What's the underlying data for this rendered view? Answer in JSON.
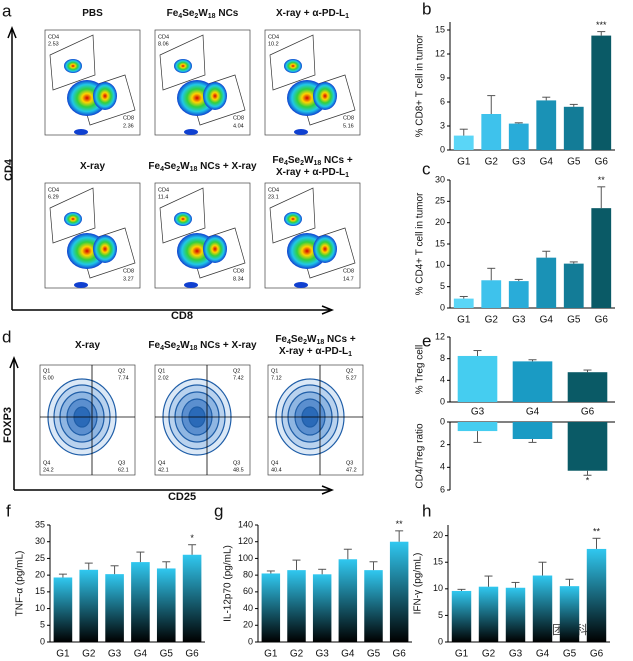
{
  "flow_a": {
    "panel_label": "a",
    "y_axis": "CD4",
    "x_axis": "CD8",
    "plots": [
      {
        "title_lines": [
          "PBS"
        ],
        "cd4_label": "CD4",
        "cd4": "2.53",
        "cd8_label": "CD8",
        "cd8": "2.36"
      },
      {
        "title_lines": [
          "Fe4Se2W18 NCs"
        ],
        "cd4_label": "CD4",
        "cd4": "8.06",
        "cd8_label": "CD8",
        "cd8": "4.04"
      },
      {
        "title_lines": [
          "X-ray + α-PD-L1"
        ],
        "cd4_label": "CD4",
        "cd4": "10.2",
        "cd8_label": "CD8",
        "cd8": "5.16"
      },
      {
        "title_lines": [
          "X-ray"
        ],
        "cd4_label": "CD4",
        "cd4": "6.29",
        "cd8_label": "CD8",
        "cd8": "3.27"
      },
      {
        "title_lines": [
          "Fe4Se2W18 NCs + X-ray"
        ],
        "cd4_label": "CD4",
        "cd4": "11.4",
        "cd8_label": "CD8",
        "cd8": "8.34"
      },
      {
        "title_lines": [
          "Fe4Se2W18 NCs +",
          "X-ray + α-PD-L1"
        ],
        "cd4_label": "CD4",
        "cd4": "23.1",
        "cd8_label": "CD8",
        "cd8": "14.7"
      }
    ]
  },
  "flow_d": {
    "panel_label": "d",
    "y_axis": "FOXP3",
    "x_axis": "CD25",
    "plots": [
      {
        "title_lines": [
          "X-ray"
        ],
        "quadrants": [
          {
            "name": "Q1",
            "value": "5.00"
          },
          {
            "name": "Q2",
            "value": "7.74"
          },
          {
            "name": "Q3",
            "value": "62.1"
          },
          {
            "name": "Q4",
            "value": "24.2"
          }
        ]
      },
      {
        "title_lines": [
          "Fe4Se2W18 NCs + X-ray"
        ],
        "quadrants": [
          {
            "name": "Q1",
            "value": "2.02"
          },
          {
            "name": "Q2",
            "value": "7.42"
          },
          {
            "name": "Q3",
            "value": "48.5"
          },
          {
            "name": "Q4",
            "value": "42.1"
          }
        ]
      },
      {
        "title_lines": [
          "Fe4Se2W18 NCs +",
          "X-ray + α-PD-L1"
        ],
        "quadrants": [
          {
            "name": "Q1",
            "value": "7.12"
          },
          {
            "name": "Q2",
            "value": "5.27"
          },
          {
            "name": "Q3",
            "value": "47.2"
          },
          {
            "name": "Q4",
            "value": "40.4"
          }
        ]
      }
    ]
  },
  "chart_data": [
    {
      "type": "bar",
      "panel_label": "b",
      "y_label": "% CD8+ T cell in tumor",
      "categories": [
        "G1",
        "G2",
        "G3",
        "G4",
        "G5",
        "G6"
      ],
      "values": [
        1.8,
        4.5,
        3.3,
        6.2,
        5.4,
        14.3
      ],
      "errors": [
        0.8,
        2.3,
        0.1,
        0.4,
        0.3,
        0.5
      ],
      "significance": [
        null,
        null,
        null,
        null,
        null,
        "***"
      ],
      "colors": [
        "#5ad6f7",
        "#3ec2ec",
        "#29acd9",
        "#1a92b6",
        "#137c97",
        "#0a5a66"
      ],
      "ylim": [
        0,
        16
      ],
      "yticks": [
        0,
        3,
        6,
        9,
        12,
        15
      ]
    },
    {
      "type": "bar",
      "panel_label": "c",
      "y_label": "% CD4+ T cell in tumor",
      "categories": [
        "G1",
        "G2",
        "G3",
        "G4",
        "G5",
        "G6"
      ],
      "values": [
        2.2,
        6.5,
        6.3,
        11.8,
        10.4,
        23.4
      ],
      "errors": [
        0.5,
        2.8,
        0.4,
        1.5,
        0.4,
        5
      ],
      "significance": [
        null,
        null,
        null,
        null,
        null,
        "**"
      ],
      "colors": [
        "#5ad6f7",
        "#3ec2ec",
        "#29acd9",
        "#1a92b6",
        "#137c97",
        "#0a5a66"
      ],
      "ylim": [
        0,
        30
      ],
      "yticks": [
        0,
        5,
        10,
        15,
        20,
        25,
        30
      ]
    },
    {
      "type": "bar",
      "panel_label": "e",
      "y_label": "% Treg cell",
      "categories": [
        "G3",
        "G4",
        "G6"
      ],
      "values": [
        8.5,
        7.5,
        5.5
      ],
      "errors": [
        1,
        0.3,
        0.4
      ],
      "colors": [
        "#45cdf0",
        "#1a9bc4",
        "#0a5a66"
      ],
      "ylim": [
        0,
        12
      ],
      "yticks": [
        0,
        4,
        8,
        12
      ]
    },
    {
      "type": "bar",
      "y_label": "CD4/Treg ratio",
      "inverted": true,
      "values": [
        0.8,
        1.5,
        4.3
      ],
      "errors": [
        1,
        0.3,
        0.4
      ],
      "significance": [
        null,
        null,
        "*"
      ],
      "colors": [
        "#45cdf0",
        "#1a9bc4",
        "#0a5a66"
      ],
      "ylim": [
        0,
        6
      ],
      "yticks": [
        0,
        2,
        4,
        6
      ]
    },
    {
      "type": "bar",
      "panel_label": "f",
      "y_label": "TNF-α (pg/mL)",
      "categories": [
        "G1",
        "G2",
        "G3",
        "G4",
        "G5",
        "G6"
      ],
      "values": [
        19.3,
        21.6,
        20.3,
        23.9,
        22.0,
        26.1
      ],
      "errors": [
        1,
        2,
        2.5,
        3,
        2,
        3
      ],
      "significance": [
        null,
        null,
        null,
        null,
        null,
        "*"
      ],
      "gradient": [
        "#30c8f0",
        "#000000"
      ],
      "ylim": [
        0,
        35
      ],
      "yticks": [
        0,
        5,
        10,
        15,
        20,
        25,
        30,
        35
      ]
    },
    {
      "type": "bar",
      "panel_label": "g",
      "y_label": "IL-12p70 (pg/mL)",
      "categories": [
        "G1",
        "G2",
        "G3",
        "G4",
        "G5",
        "G6"
      ],
      "values": [
        82,
        86,
        81,
        99,
        86,
        120
      ],
      "errors": [
        3,
        12,
        6,
        12,
        10,
        13
      ],
      "significance": [
        null,
        null,
        null,
        null,
        null,
        "**"
      ],
      "gradient": [
        "#30c8f0",
        "#000000"
      ],
      "ylim": [
        0,
        140
      ],
      "yticks": [
        0,
        20,
        40,
        60,
        80,
        100,
        120,
        140
      ]
    },
    {
      "type": "bar",
      "panel_label": "h",
      "y_label": "IFN-γ (pg/mL)",
      "categories": [
        "G1",
        "G2",
        "G3",
        "G4",
        "G5",
        "G6"
      ],
      "values": [
        9.6,
        10.4,
        10.2,
        12.5,
        10.5,
        17.5
      ],
      "errors": [
        0.3,
        2,
        1,
        2.5,
        1.3,
        2
      ],
      "significance": [
        null,
        null,
        null,
        null,
        null,
        "**"
      ],
      "gradient": [
        "#30c8f0",
        "#000000"
      ],
      "ylim": [
        0,
        22
      ],
      "yticks": [
        0,
        5,
        10,
        15,
        20
      ]
    }
  ],
  "watermark": "团簇科学"
}
